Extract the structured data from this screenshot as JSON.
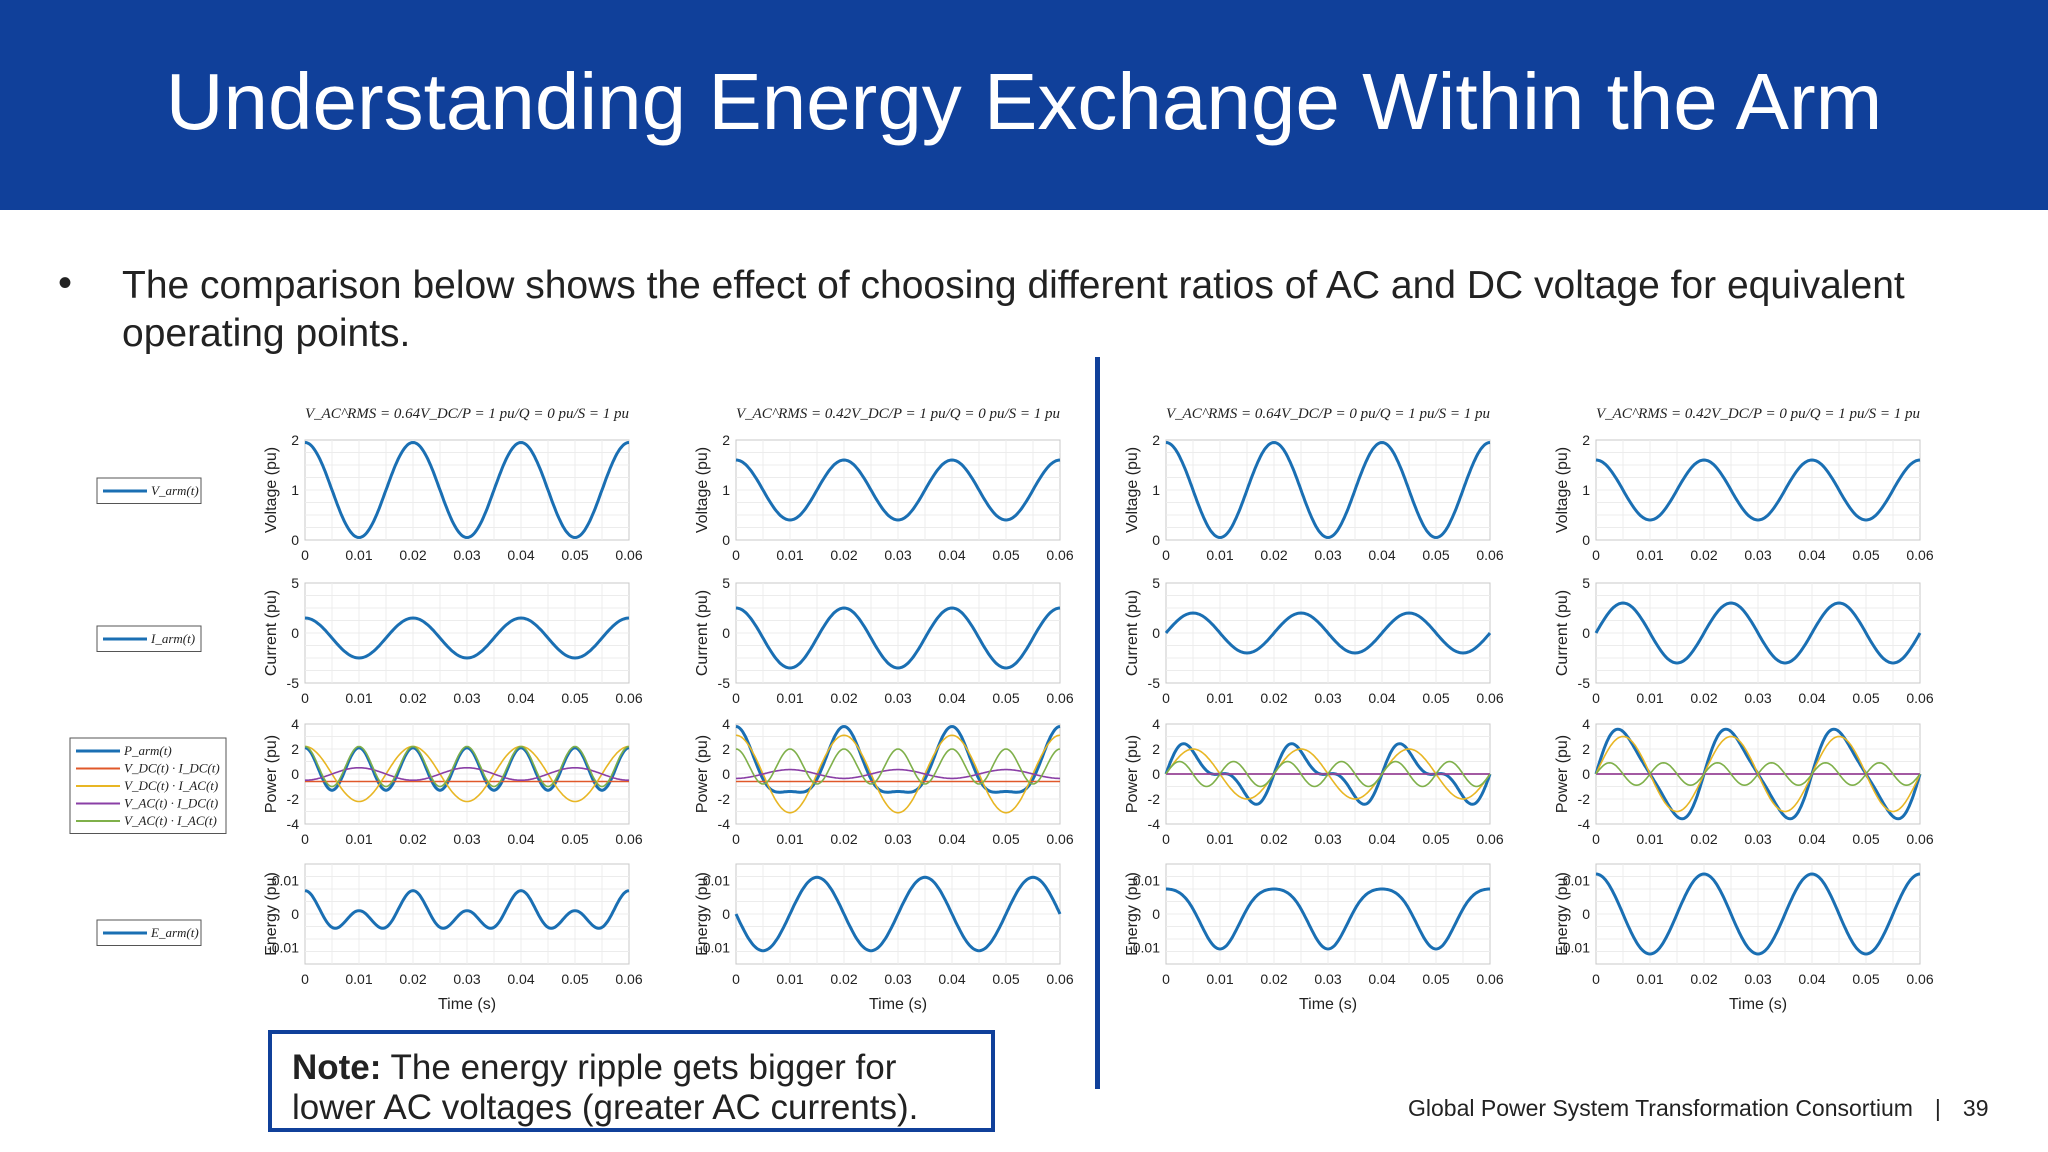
{
  "slide": {
    "title": "Understanding Energy Exchange Within the Arm",
    "bullet": "The comparison below shows the effect of choosing different ratios of AC and DC voltage for equivalent operating points.",
    "note_bold": "Note:",
    "note_text": " The energy ripple gets bigger for lower AC voltages (greater AC currents).",
    "footer_org": "Global Power System Transformation Consortium",
    "footer_sep": "|",
    "page_number": "39"
  },
  "colors": {
    "banner": "#10409a",
    "parm": "#1a6fb3",
    "dc_dc": "#e0582a",
    "dc_ac": "#e8b624",
    "ac_dc": "#8a3fa6",
    "ac_ac": "#7fb04a"
  },
  "legends": [
    [
      "V_arm(t)"
    ],
    [
      "I_arm(t)"
    ],
    [
      "P_arm(t)",
      "V_DC(t) · I_DC(t)",
      "V_DC(t) · I_AC(t)",
      "V_AC(t) · I_DC(t)",
      "V_AC(t) · I_AC(t)"
    ],
    [
      "E_arm(t)"
    ]
  ],
  "chart_data": [
    {
      "type": "line",
      "title": "V_AC^RMS = 0.64V_DC/P = 1 pu/Q = 0 pu/S = 1 pu",
      "x_range": [
        0,
        0.06
      ],
      "x_ticks": [
        0,
        0.01,
        0.02,
        0.03,
        0.04,
        0.05,
        0.06
      ],
      "xlabel": "Time (s)",
      "panels": [
        {
          "ylabel": "Voltage (pu)",
          "ylim": [
            0,
            2
          ],
          "yticks": [
            0,
            1,
            2
          ],
          "series": [
            {
              "name": "V_arm(t)",
              "dc": 1.0,
              "amp": 0.95,
              "phase": 0
            }
          ]
        },
        {
          "ylabel": "Current (pu)",
          "ylim": [
            -5,
            5
          ],
          "yticks": [
            -5,
            0,
            5
          ],
          "series": [
            {
              "name": "I_arm(t)",
              "dc": -0.5,
              "amp": 2.0,
              "phase": 0
            }
          ]
        },
        {
          "ylabel": "Power (pu)",
          "ylim": [
            -4,
            4
          ],
          "yticks": [
            -4,
            -2,
            0,
            2,
            4
          ],
          "series": [
            {
              "name": "P_arm(t)",
              "dc": 0.4,
              "amp": 0.0,
              "h2": 1.7,
              "phase": 0
            },
            {
              "name": "V_DC(t) · I_DC(t)",
              "dc": -0.6,
              "amp": 0,
              "phase": 0
            },
            {
              "name": "V_DC(t) · I_AC(t)",
              "dc": 0,
              "amp": 2.2,
              "phase": 0
            },
            {
              "name": "V_AC(t) · I_DC(t)",
              "dc": 0,
              "amp": 0.5,
              "phase": 3.1416
            },
            {
              "name": "V_AC(t) · I_AC(t)",
              "dc": 0.6,
              "amp": 0,
              "h2": 1.6,
              "phase": 0
            }
          ]
        },
        {
          "ylabel": "Energy (pu)",
          "ylim": [
            -0.015,
            0.015
          ],
          "yticks": [
            -0.01,
            0,
            0.01
          ],
          "ytick_labels": [
            "-0.01",
            "0",
            "0.01"
          ],
          "series": [
            {
              "name": "E_arm(t)",
              "dc": 0.0,
              "amp": 0.003,
              "h2": 0.004,
              "phase": 0
            }
          ]
        }
      ]
    },
    {
      "type": "line",
      "title": "V_AC^RMS = 0.42V_DC/P = 1 pu/Q = 0 pu/S = 1 pu",
      "x_range": [
        0,
        0.06
      ],
      "x_ticks": [
        0,
        0.01,
        0.02,
        0.03,
        0.04,
        0.05,
        0.06
      ],
      "xlabel": "Time (s)",
      "panels": [
        {
          "ylabel": "Voltage (pu)",
          "ylim": [
            0,
            2
          ],
          "yticks": [
            0,
            1,
            2
          ],
          "series": [
            {
              "name": "V_arm(t)",
              "dc": 1.0,
              "amp": 0.6,
              "phase": 0
            }
          ]
        },
        {
          "ylabel": "Current (pu)",
          "ylim": [
            -5,
            5
          ],
          "yticks": [
            -5,
            0,
            5
          ],
          "series": [
            {
              "name": "I_arm(t)",
              "dc": -0.5,
              "amp": 3.0,
              "phase": 0
            }
          ]
        },
        {
          "ylabel": "Power (pu)",
          "ylim": [
            -4,
            4
          ],
          "yticks": [
            -4,
            -2,
            0,
            2,
            4
          ],
          "series": [
            {
              "name": "P_arm(t)",
              "dc": 0.4,
              "amp": 2.6,
              "h2": 0.8,
              "phase": 0
            },
            {
              "name": "V_DC(t) · I_DC(t)",
              "dc": -0.6,
              "amp": 0,
              "phase": 0
            },
            {
              "name": "V_DC(t) · I_AC(t)",
              "dc": 0,
              "amp": 3.1,
              "phase": 0
            },
            {
              "name": "V_AC(t) · I_DC(t)",
              "dc": 0,
              "amp": 0.35,
              "phase": 3.1416
            },
            {
              "name": "V_AC(t) · I_AC(t)",
              "dc": 0.6,
              "amp": 0,
              "h2": 1.4,
              "phase": 0
            }
          ]
        },
        {
          "ylabel": "Energy (pu)",
          "ylim": [
            -0.015,
            0.015
          ],
          "yticks": [
            -0.01,
            0,
            0.01
          ],
          "ytick_labels": [
            "-0.01",
            "0",
            "0.01"
          ],
          "series": [
            {
              "name": "E_arm(t)",
              "dc": 0.0,
              "amp": 0.011,
              "phase": 1.5708
            }
          ]
        }
      ]
    },
    {
      "type": "line",
      "title": "V_AC^RMS = 0.64V_DC/P = 0 pu/Q = 1 pu/S = 1 pu",
      "x_range": [
        0,
        0.06
      ],
      "x_ticks": [
        0,
        0.01,
        0.02,
        0.03,
        0.04,
        0.05,
        0.06
      ],
      "xlabel": "Time (s)",
      "panels": [
        {
          "ylabel": "Voltage (pu)",
          "ylim": [
            0,
            2
          ],
          "yticks": [
            0,
            1,
            2
          ],
          "series": [
            {
              "name": "V_arm(t)",
              "dc": 1.0,
              "amp": 0.95,
              "phase": 0
            }
          ]
        },
        {
          "ylabel": "Current (pu)",
          "ylim": [
            -5,
            5
          ],
          "yticks": [
            -5,
            0,
            5
          ],
          "series": [
            {
              "name": "I_arm(t)",
              "dc": 0.0,
              "amp": 2.0,
              "phase": -1.5708
            }
          ]
        },
        {
          "ylabel": "Power (pu)",
          "ylim": [
            -4,
            4
          ],
          "yticks": [
            -4,
            -2,
            0,
            2,
            4
          ],
          "series": [
            {
              "name": "P_arm(t)",
              "dc": 0,
              "amp": 1.8,
              "h2": 1.0,
              "phase": -1.5708
            },
            {
              "name": "V_DC(t) · I_DC(t)",
              "dc": 0,
              "amp": 0,
              "phase": 0
            },
            {
              "name": "V_DC(t) · I_AC(t)",
              "dc": 0,
              "amp": 2.0,
              "phase": -1.5708
            },
            {
              "name": "V_AC(t) · I_DC(t)",
              "dc": 0,
              "amp": 0,
              "phase": 0
            },
            {
              "name": "V_AC(t) · I_AC(t)",
              "dc": 0,
              "amp": 0,
              "h2": 1.0,
              "phase": -1.5708
            }
          ]
        },
        {
          "ylabel": "Energy (pu)",
          "ylim": [
            -0.015,
            0.015
          ],
          "yticks": [
            -0.01,
            0,
            0.01
          ],
          "ytick_labels": [
            "-0.01",
            "0",
            "0.01"
          ],
          "series": [
            {
              "name": "E_arm(t)",
              "dc": 0.0,
              "amp": 0.009,
              "h2": -0.0015,
              "phase": 0
            }
          ]
        }
      ]
    },
    {
      "type": "line",
      "title": "V_AC^RMS = 0.42V_DC/P = 0 pu/Q = 1 pu/S = 1 pu",
      "x_range": [
        0,
        0.06
      ],
      "x_ticks": [
        0,
        0.01,
        0.02,
        0.03,
        0.04,
        0.05,
        0.06
      ],
      "xlabel": "Time (s)",
      "panels": [
        {
          "ylabel": "Voltage (pu)",
          "ylim": [
            0,
            2
          ],
          "yticks": [
            0,
            1,
            2
          ],
          "series": [
            {
              "name": "V_arm(t)",
              "dc": 1.0,
              "amp": 0.6,
              "phase": 0
            }
          ]
        },
        {
          "ylabel": "Current (pu)",
          "ylim": [
            -5,
            5
          ],
          "yticks": [
            -5,
            0,
            5
          ],
          "series": [
            {
              "name": "I_arm(t)",
              "dc": 0.0,
              "amp": 3.0,
              "phase": -1.5708
            }
          ]
        },
        {
          "ylabel": "Power (pu)",
          "ylim": [
            -4,
            4
          ],
          "yticks": [
            -4,
            -2,
            0,
            2,
            4
          ],
          "series": [
            {
              "name": "P_arm(t)",
              "dc": 0,
              "amp": 3.4,
              "h2": 0.6,
              "phase": -1.5708
            },
            {
              "name": "V_DC(t) · I_DC(t)",
              "dc": 0,
              "amp": 0,
              "phase": 0
            },
            {
              "name": "V_DC(t) · I_AC(t)",
              "dc": 0,
              "amp": 3.0,
              "phase": -1.5708
            },
            {
              "name": "V_AC(t) · I_DC(t)",
              "dc": 0,
              "amp": 0,
              "phase": 0
            },
            {
              "name": "V_AC(t) · I_AC(t)",
              "dc": 0,
              "amp": 0,
              "h2": 0.9,
              "phase": -1.5708
            }
          ]
        },
        {
          "ylabel": "Energy (pu)",
          "ylim": [
            -0.015,
            0.015
          ],
          "yticks": [
            -0.01,
            0,
            0.01
          ],
          "ytick_labels": [
            "-0.01",
            "0",
            "0.01"
          ],
          "series": [
            {
              "name": "E_arm(t)",
              "dc": 0.0,
              "amp": 0.012,
              "phase": 0
            }
          ]
        }
      ]
    }
  ]
}
